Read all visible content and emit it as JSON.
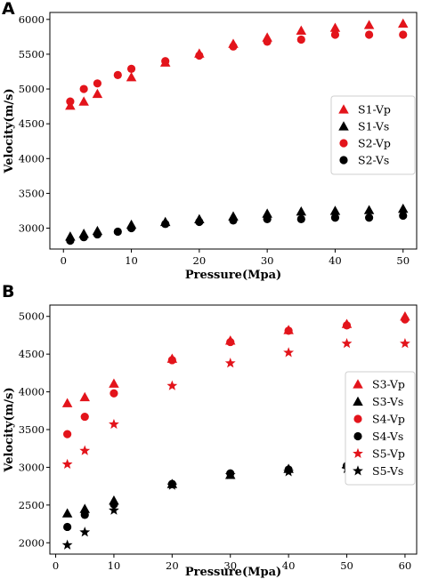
{
  "panels": [
    {
      "letter": "A",
      "type": "scatter",
      "xlabel": "Pressure(Mpa)",
      "ylabel": "Velocity(m/s)",
      "xlim": [
        -2,
        52
      ],
      "ylim": [
        2700,
        6100
      ],
      "xticks": [
        0,
        10,
        20,
        30,
        40,
        50
      ],
      "yticks": [
        3000,
        3500,
        4000,
        4500,
        5000,
        5500,
        6000
      ],
      "legend_position": "center-right",
      "series": [
        {
          "name": "S1-Vp",
          "marker": "triangle",
          "color": "#e3141b",
          "x": [
            1,
            3,
            5,
            10,
            15,
            20,
            25,
            30,
            35,
            40,
            45,
            50
          ],
          "y": [
            4760,
            4820,
            4930,
            5170,
            5380,
            5510,
            5650,
            5740,
            5840,
            5880,
            5920,
            5940
          ]
        },
        {
          "name": "S1-Vs",
          "marker": "triangle",
          "color": "#000000",
          "x": [
            1,
            3,
            5,
            10,
            15,
            20,
            25,
            30,
            35,
            40,
            45,
            50
          ],
          "y": [
            2880,
            2920,
            2960,
            3050,
            3090,
            3130,
            3170,
            3210,
            3240,
            3250,
            3260,
            3280
          ]
        },
        {
          "name": "S2-Vp",
          "marker": "circle",
          "color": "#e3141b",
          "x": [
            1,
            3,
            5,
            8,
            10,
            15,
            20,
            25,
            30,
            35,
            40,
            45,
            50
          ],
          "y": [
            4820,
            5000,
            5080,
            5200,
            5290,
            5400,
            5480,
            5610,
            5680,
            5710,
            5780,
            5780,
            5780
          ]
        },
        {
          "name": "S2-Vs",
          "marker": "circle",
          "color": "#000000",
          "x": [
            1,
            3,
            5,
            8,
            10,
            15,
            20,
            25,
            30,
            35,
            40,
            45,
            50
          ],
          "y": [
            2820,
            2870,
            2910,
            2950,
            3000,
            3060,
            3090,
            3110,
            3130,
            3130,
            3150,
            3150,
            3180
          ]
        }
      ]
    },
    {
      "letter": "B",
      "type": "scatter",
      "xlabel": "Pressure(Mpa)",
      "ylabel": "Velocity(m/s)",
      "xlim": [
        -1,
        62
      ],
      "ylim": [
        1850,
        5150
      ],
      "xticks": [
        0,
        10,
        20,
        30,
        40,
        50,
        60
      ],
      "yticks": [
        2000,
        2500,
        3000,
        3500,
        4000,
        4500,
        5000
      ],
      "legend_position": "center-right",
      "series": [
        {
          "name": "S3-Vp",
          "marker": "triangle",
          "color": "#e3141b",
          "x": [
            2,
            5,
            10,
            20,
            30,
            40,
            50,
            60
          ],
          "y": [
            3850,
            3930,
            4110,
            4440,
            4680,
            4820,
            4900,
            5000
          ]
        },
        {
          "name": "S3-Vs",
          "marker": "triangle",
          "color": "#000000",
          "x": [
            2,
            5,
            10,
            20,
            30,
            40,
            50,
            60
          ],
          "y": [
            2390,
            2450,
            2560,
            2780,
            2900,
            2980,
            3040,
            3070
          ]
        },
        {
          "name": "S4-Vp",
          "marker": "circle",
          "color": "#e3141b",
          "x": [
            2,
            5,
            10,
            20,
            30,
            40,
            50,
            60
          ],
          "y": [
            3440,
            3670,
            3980,
            4420,
            4660,
            4810,
            4880,
            4960
          ]
        },
        {
          "name": "S4-Vs",
          "marker": "circle",
          "color": "#000000",
          "x": [
            2,
            5,
            10,
            20,
            30,
            40,
            50,
            60
          ],
          "y": [
            2210,
            2370,
            2510,
            2780,
            2920,
            2970,
            3020,
            3050
          ]
        },
        {
          "name": "S5-Vp",
          "marker": "star",
          "color": "#e3141b",
          "x": [
            2,
            5,
            10,
            20,
            30,
            40,
            50,
            60
          ],
          "y": [
            3040,
            3220,
            3570,
            4080,
            4380,
            4520,
            4640,
            4640
          ]
        },
        {
          "name": "S5-Vs",
          "marker": "star",
          "color": "#000000",
          "x": [
            2,
            5,
            10,
            20,
            30,
            40,
            50,
            60
          ],
          "y": [
            1970,
            2140,
            2430,
            2760,
            2900,
            2940,
            2980,
            3010
          ]
        }
      ]
    }
  ],
  "chart_data": [
    {
      "type": "scatter",
      "title": "A",
      "xlabel": "Pressure(Mpa)",
      "ylabel": "Velocity(m/s)",
      "xlim": [
        -2,
        52
      ],
      "ylim": [
        2700,
        6100
      ],
      "legend": "center-right",
      "series": [
        {
          "name": "S1-Vp",
          "x": [
            1,
            3,
            5,
            10,
            15,
            20,
            25,
            30,
            35,
            40,
            45,
            50
          ],
          "y": [
            4760,
            4820,
            4930,
            5170,
            5380,
            5510,
            5650,
            5740,
            5840,
            5880,
            5920,
            5940
          ]
        },
        {
          "name": "S1-Vs",
          "x": [
            1,
            3,
            5,
            10,
            15,
            20,
            25,
            30,
            35,
            40,
            45,
            50
          ],
          "y": [
            2880,
            2920,
            2960,
            3050,
            3090,
            3130,
            3170,
            3210,
            3240,
            3250,
            3260,
            3280
          ]
        },
        {
          "name": "S2-Vp",
          "x": [
            1,
            3,
            5,
            8,
            10,
            15,
            20,
            25,
            30,
            35,
            40,
            45,
            50
          ],
          "y": [
            4820,
            5000,
            5080,
            5200,
            5290,
            5400,
            5480,
            5610,
            5680,
            5710,
            5780,
            5780,
            5780
          ]
        },
        {
          "name": "S2-Vs",
          "x": [
            1,
            3,
            5,
            8,
            10,
            15,
            20,
            25,
            30,
            35,
            40,
            45,
            50
          ],
          "y": [
            2820,
            2870,
            2910,
            2950,
            3000,
            3060,
            3090,
            3110,
            3130,
            3130,
            3150,
            3150,
            3180
          ]
        }
      ]
    },
    {
      "type": "scatter",
      "title": "B",
      "xlabel": "Pressure(Mpa)",
      "ylabel": "Velocity(m/s)",
      "xlim": [
        -1,
        62
      ],
      "ylim": [
        1850,
        5150
      ],
      "legend": "center-right",
      "series": [
        {
          "name": "S3-Vp",
          "x": [
            2,
            5,
            10,
            20,
            30,
            40,
            50,
            60
          ],
          "y": [
            3850,
            3930,
            4110,
            4440,
            4680,
            4820,
            4900,
            5000
          ]
        },
        {
          "name": "S3-Vs",
          "x": [
            2,
            5,
            10,
            20,
            30,
            40,
            50,
            60
          ],
          "y": [
            2390,
            2450,
            2560,
            2780,
            2900,
            2980,
            3040,
            3070
          ]
        },
        {
          "name": "S4-Vp",
          "x": [
            2,
            5,
            10,
            20,
            30,
            40,
            50,
            60
          ],
          "y": [
            3440,
            3670,
            3980,
            4420,
            4660,
            4810,
            4880,
            4960
          ]
        },
        {
          "name": "S4-Vs",
          "x": [
            2,
            5,
            10,
            20,
            30,
            40,
            50,
            60
          ],
          "y": [
            2210,
            2370,
            2510,
            2780,
            2920,
            2970,
            3020,
            3050
          ]
        },
        {
          "name": "S5-Vp",
          "x": [
            2,
            5,
            10,
            20,
            30,
            40,
            50,
            60
          ],
          "y": [
            3040,
            3220,
            3570,
            4080,
            4380,
            4520,
            4640,
            4640
          ]
        },
        {
          "name": "S5-Vs",
          "x": [
            2,
            5,
            10,
            20,
            30,
            40,
            50,
            60
          ],
          "y": [
            1970,
            2140,
            2430,
            2760,
            2900,
            2940,
            2980,
            3010
          ]
        }
      ]
    }
  ]
}
